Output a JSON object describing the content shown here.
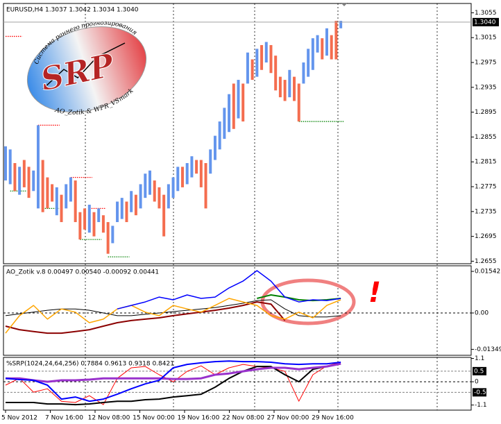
{
  "chart_data": [
    {
      "type": "range",
      "title": "EURUSD,H4  1.3037 1.3042 1.3034 1.3040",
      "x": [
        0,
        1,
        2,
        3,
        4,
        5,
        6,
        7,
        8,
        9,
        10,
        11,
        12,
        13,
        14,
        15,
        16,
        17,
        18,
        19,
        20,
        21,
        22,
        23,
        24,
        25,
        26,
        27,
        28,
        29,
        30,
        31,
        32,
        33,
        34,
        35,
        36,
        37,
        38,
        39,
        40,
        41,
        42,
        43,
        44,
        45,
        46,
        47,
        48,
        49,
        50,
        51,
        52,
        53,
        54,
        55,
        56,
        57,
        58,
        59,
        60,
        61,
        62,
        63,
        64,
        65,
        66,
        67,
        68,
        69,
        70,
        71,
        72
      ],
      "low": [
        1.2785,
        1.2779,
        1.2768,
        1.2762,
        1.2774,
        1.2757,
        1.2768,
        1.274,
        1.2734,
        1.274,
        1.2751,
        1.2729,
        1.2718,
        1.274,
        1.2751,
        1.2718,
        1.269,
        1.2706,
        1.2701,
        1.2695,
        1.2718,
        1.2701,
        1.2667,
        1.2684,
        1.2718,
        1.2723,
        1.2718,
        1.2734,
        1.2729,
        1.274,
        1.2757,
        1.2762,
        1.2751,
        1.274,
        1.2695,
        1.274,
        1.2757,
        1.2768,
        1.2774,
        1.2779,
        1.279,
        1.2796,
        1.2774,
        1.274,
        1.2796,
        1.2818,
        1.2835,
        1.2852,
        1.2863,
        1.2868,
        1.2885,
        1.288,
        1.2941,
        1.2947,
        1.2952,
        1.2963,
        1.2975,
        1.2958,
        1.293,
        1.2919,
        1.2913,
        1.2919,
        1.2913,
        1.288,
        1.2941,
        1.2952,
        1.2963,
        1.2991,
        1.298,
        1.2986,
        1.298,
        1.298,
        1.303
      ],
      "high": [
        1.284,
        1.2835,
        1.2813,
        1.2807,
        1.2818,
        1.2807,
        1.2801,
        1.2874,
        1.2818,
        1.279,
        1.2779,
        1.2774,
        1.2762,
        1.2779,
        1.279,
        1.2785,
        1.2734,
        1.274,
        1.2746,
        1.2734,
        1.274,
        1.2729,
        1.2718,
        1.2712,
        1.2751,
        1.2757,
        1.2751,
        1.2768,
        1.2762,
        1.2779,
        1.2796,
        1.2801,
        1.2785,
        1.2774,
        1.2762,
        1.2779,
        1.279,
        1.2807,
        1.2807,
        1.2813,
        1.2824,
        1.2818,
        1.2818,
        1.2813,
        1.2835,
        1.2857,
        1.288,
        1.2902,
        1.2924,
        1.2941,
        1.2947,
        1.2941,
        1.2991,
        1.298,
        1.2997,
        1.3003,
        1.3008,
        1.3003,
        1.2986,
        1.2952,
        1.2947,
        1.2963,
        1.2952,
        1.2941,
        1.2975,
        1.2997,
        1.3014,
        1.3019,
        1.3014,
        1.303,
        1.3019,
        1.3042,
        1.3042
      ],
      "colors": [
        "#6495ed",
        "#6495ed",
        "#f46d4f",
        "#6495ed",
        "#f46d4f",
        "#f46d4f",
        "#6495ed",
        "#6495ed",
        "#f46d4f",
        "#f46d4f",
        "#f46d4f",
        "#6495ed",
        "#f46d4f",
        "#6495ed",
        "#6495ed",
        "#f46d4f",
        "#f46d4f",
        "#f46d4f",
        "#6495ed",
        "#f46d4f",
        "#6495ed",
        "#f46d4f",
        "#f46d4f",
        "#6495ed",
        "#6495ed",
        "#6495ed",
        "#f46d4f",
        "#6495ed",
        "#f46d4f",
        "#6495ed",
        "#6495ed",
        "#6495ed",
        "#f46d4f",
        "#f46d4f",
        "#f46d4f",
        "#6495ed",
        "#6495ed",
        "#6495ed",
        "#f46d4f",
        "#6495ed",
        "#6495ed",
        "#f46d4f",
        "#f46d4f",
        "#f46d4f",
        "#6495ed",
        "#6495ed",
        "#6495ed",
        "#6495ed",
        "#6495ed",
        "#f46d4f",
        "#6495ed",
        "#f46d4f",
        "#6495ed",
        "#f46d4f",
        "#6495ed",
        "#f46d4f",
        "#6495ed",
        "#f46d4f",
        "#f46d4f",
        "#f46d4f",
        "#f46d4f",
        "#6495ed",
        "#f46d4f",
        "#f46d4f",
        "#6495ed",
        "#6495ed",
        "#6495ed",
        "#6495ed",
        "#f46d4f",
        "#6495ed",
        "#f46d4f",
        "#f46d4f",
        "#6495ed"
      ],
      "levels": [
        {
          "value": 1.3017,
          "from": 0,
          "to": 3,
          "color": "#ff0000"
        },
        {
          "value": 1.2768,
          "from": 1,
          "to": 4,
          "color": "#008000"
        },
        {
          "value": 1.2874,
          "from": 7,
          "to": 11,
          "color": "#ff0000"
        },
        {
          "value": 1.274,
          "from": 8,
          "to": 11,
          "color": "#008000"
        },
        {
          "value": 1.279,
          "from": 14,
          "to": 18,
          "color": "#ff0000"
        },
        {
          "value": 1.274,
          "from": 18,
          "to": 21,
          "color": "#ff0000"
        },
        {
          "value": 1.269,
          "from": 16,
          "to": 20,
          "color": "#008000"
        },
        {
          "value": 1.2662,
          "from": 22,
          "to": 26,
          "color": "#008000"
        },
        {
          "value": 1.288,
          "from": 63,
          "to": 72,
          "color": "#008000"
        }
      ],
      "current": {
        "value": 1.304,
        "label": "1.3040"
      },
      "xlim": [
        0,
        100
      ],
      "ylim": [
        1.2651,
        1.307
      ],
      "yticks": [
        1.3055,
        1.3015,
        1.2975,
        1.2935,
        1.2895,
        1.2855,
        1.2815,
        1.2775,
        1.2735,
        1.2695,
        1.2655
      ],
      "logo": {
        "top": "Система раннего прогнозирования",
        "name": "SRP",
        "bottom": "AO_Zotik & WPR_VSmark"
      }
    },
    {
      "type": "line",
      "title": "AO_Zotik v.8 0.00497 0.00540 -0.00092 0.00441",
      "annotation": "!",
      "x": [
        0,
        3,
        6,
        9,
        12,
        15,
        18,
        21,
        24,
        27,
        30,
        33,
        36,
        39,
        42,
        45,
        48,
        51,
        54,
        57,
        60,
        63,
        66,
        69,
        72
      ],
      "series": [
        {
          "color": "#000000",
          "width": 1,
          "values": [
            -0.001,
            -0.0003,
            0.0003,
            0.001,
            0.0015,
            0.0015,
            0.001,
            0,
            -0.001,
            -0.001,
            -0.0005,
            0,
            0.0005,
            0.001,
            0.0015,
            0.002,
            0.0028,
            0.0036,
            0.0046,
            0.0049,
            0.0015,
            -0.001,
            -0.0015,
            -0.0015,
            -0.001
          ]
        },
        {
          "color": "#8b0000",
          "width": 2,
          "values": [
            -0.0049,
            -0.0062,
            -0.0069,
            -0.0075,
            -0.0075,
            -0.0069,
            -0.0062,
            -0.0049,
            -0.0036,
            -0.0028,
            -0.0023,
            -0.0018,
            -0.001,
            -0.0003,
            0.0003,
            0.001,
            0.0018,
            0.0028,
            0.0041,
            0.0033,
            -0.0028,
            null,
            null,
            null,
            null
          ]
        },
        {
          "color": "#ffa500",
          "width": 1.5,
          "values": [
            -0.0075,
            -0.001,
            0.0028,
            -0.0023,
            0.0015,
            0.0003,
            -0.0036,
            -0.0023,
            0.0015,
            0.0028,
            0.0003,
            -0.001,
            0.0028,
            0.0015,
            0.0003,
            0.0028,
            0.0054,
            0.0041,
            0.0028,
            -0.001,
            -0.0023,
            0.0003,
            -0.0018,
            0.0028,
            0.0049
          ]
        },
        {
          "color": "#008000",
          "width": 2,
          "values": [
            null,
            null,
            null,
            null,
            null,
            null,
            null,
            null,
            null,
            null,
            null,
            null,
            null,
            null,
            null,
            null,
            null,
            null,
            0.0054,
            0.0067,
            0.0059,
            0.0049,
            0.0046,
            0.0049,
            0.0054
          ]
        },
        {
          "color": "#0000ff",
          "width": 1.5,
          "values": [
            null,
            null,
            null,
            null,
            null,
            null,
            null,
            null,
            0.0015,
            0.0028,
            0.0041,
            0.0059,
            0.0049,
            0.0067,
            0.0054,
            0.0059,
            0.0093,
            0.0118,
            0.0157,
            0.0118,
            0.0059,
            0.0041,
            0.0049,
            0.0046,
            0.0054
          ]
        }
      ],
      "xlim": [
        0,
        100
      ],
      "ylim": [
        -0.0157,
        0.0175
      ],
      "yticks": [
        0.01542,
        {
          "value": 0,
          "label": "0.00"
        },
        -0.01349
      ]
    },
    {
      "type": "line",
      "title": "%SRP(1024,24,64,256) 0.7884 0.9613 0.9318 0.8421",
      "x": [
        0,
        3,
        6,
        9,
        12,
        15,
        18,
        21,
        24,
        27,
        30,
        33,
        36,
        39,
        42,
        45,
        48,
        51,
        54,
        57,
        60,
        63,
        66,
        69,
        72
      ],
      "series": [
        {
          "color": "#ff0000",
          "width": 1,
          "values": [
            -0.16,
            0.16,
            -0.49,
            -0.33,
            -0.92,
            -0.98,
            -0.66,
            -1.08,
            0.16,
            0.66,
            0.72,
            0.33,
            0,
            0.49,
            0.75,
            0.33,
            0.66,
            0.82,
            0.72,
            0.66,
            0.49,
            -0.92,
            0.33,
            0.75,
            0.92
          ]
        },
        {
          "color": "#000000",
          "width": 2,
          "values": [
            -0.98,
            -0.98,
            -0.98,
            -1.05,
            -1.05,
            -1.08,
            -1.05,
            -0.98,
            -0.92,
            -0.92,
            -0.85,
            -0.82,
            -0.72,
            -0.66,
            -0.59,
            -0.26,
            0.16,
            0.49,
            0.72,
            0.72,
            0.33,
            0,
            0.59,
            0.72,
            0.85
          ]
        },
        {
          "color": "#9932cc",
          "width": 3,
          "values": [
            0.16,
            0.16,
            0.07,
            0,
            0.07,
            0.07,
            0.1,
            0.16,
            0.16,
            0.16,
            0.16,
            0.16,
            0.13,
            0.13,
            0.16,
            0.33,
            0.39,
            0.49,
            0.59,
            0.66,
            0.66,
            0.59,
            0.66,
            0.72,
            0.85
          ]
        },
        {
          "color": "#0000ff",
          "width": 2,
          "values": [
            0.16,
            0.1,
            0.07,
            -0.16,
            -0.82,
            -0.72,
            -0.92,
            -0.82,
            -0.59,
            -0.33,
            -0.1,
            0.07,
            0.66,
            0.82,
            0.89,
            0.95,
            0.98,
            0.95,
            0.95,
            0.92,
            0.85,
            0.82,
            0.85,
            0.85,
            0.92
          ]
        }
      ],
      "levels": [
        0.5,
        -0.5
      ],
      "xlim": [
        0,
        100
      ],
      "ylim": [
        -1.34,
        1.15
      ],
      "yticks": [
        1.1,
        0,
        -1.1
      ]
    }
  ],
  "time_axis": [
    "5 Nov 2012",
    "7 Nov 16:00",
    "12 Nov 08:00",
    "15 Nov 00:00",
    "19 Nov 16:00",
    "22 Nov 08:00",
    "27 Nov 00:00",
    "29 Nov 16:00"
  ]
}
